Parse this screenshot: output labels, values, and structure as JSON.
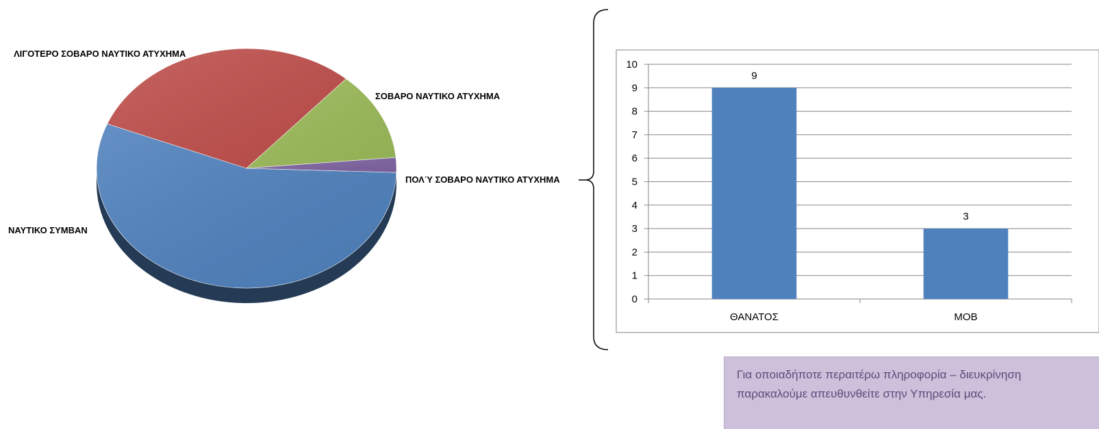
{
  "chart_data": [
    {
      "type": "pie",
      "title": "",
      "slices": [
        {
          "label": "ΝΑΥΤΙΚΟ ΣΥΜΒΑΝ",
          "value": 55.5,
          "color": "#4f81bd"
        },
        {
          "label": "ΛΙΓΟΤΕΡΟ ΣΟΒΑΡΟ ΝΑΥΤΙΚΟ ΑΤΥΧΗΜΑ",
          "value": 30.5,
          "color": "#c0504d"
        },
        {
          "label": "ΣΟΒΑΡΟ ΝΑΥΤΙΚΟ ΑΤΥΧΗΜΑ",
          "value": 12,
          "color": "#9bbb59"
        },
        {
          "label": "ΠΟΛΎ ΣΟΒΑΡΟ ΝΑΥΤΙΚΟ ΑΤΥΧΗΜΑ",
          "value": 2,
          "color": "#8064a2"
        }
      ],
      "legend": "none"
    },
    {
      "type": "bar",
      "title": "",
      "categories": [
        "ΘΑΝΑΤΟΣ",
        "MOB"
      ],
      "values": [
        9,
        3
      ],
      "data_labels": [
        "9",
        "3"
      ],
      "yticks": [
        "0",
        "1",
        "2",
        "3",
        "4",
        "5",
        "6",
        "7",
        "8",
        "9",
        "10"
      ],
      "ylim": [
        0,
        10
      ],
      "grid": true,
      "bar_color": "#4f81bd",
      "xlabel": "",
      "ylabel": ""
    }
  ],
  "note": {
    "line1": "Για οποιαδήποτε περαιτέρω πληροφορία – διευκρίνηση",
    "line2": "παρακαλούμε απευθυνθείτε στην Υπηρεσία μας."
  }
}
